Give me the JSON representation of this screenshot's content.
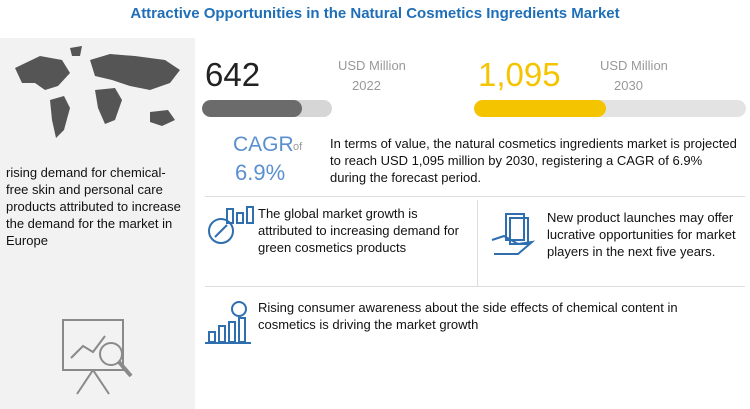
{
  "title": "Attractive Opportunities in the Natural Cosmetics Ingredients Market",
  "left_panel": {
    "text": "rising demand for chemical-free skin and personal care products attributed to increase the demand for the market in Europe"
  },
  "stats": [
    {
      "value": "642",
      "unit": "USD Million",
      "year": "2022"
    },
    {
      "value": "1,095",
      "unit": "USD Million",
      "year": "2030"
    }
  ],
  "cagr": {
    "label": "CAGR",
    "of": "of",
    "value": "6.9%"
  },
  "summary": "In terms of value, the natural cosmetics ingredients market is projected to reach USD 1,095 million by 2030, registering a CAGR of 6.9% during the forecast period.",
  "points": [
    "The global market growth is attributed to increasing demand for green cosmetics products",
    "New product launches may offer lucrative opportunities for market players in the next five years.",
    "Rising consumer awareness about the side effects of chemical content in cosmetics is driving the market growth"
  ]
}
